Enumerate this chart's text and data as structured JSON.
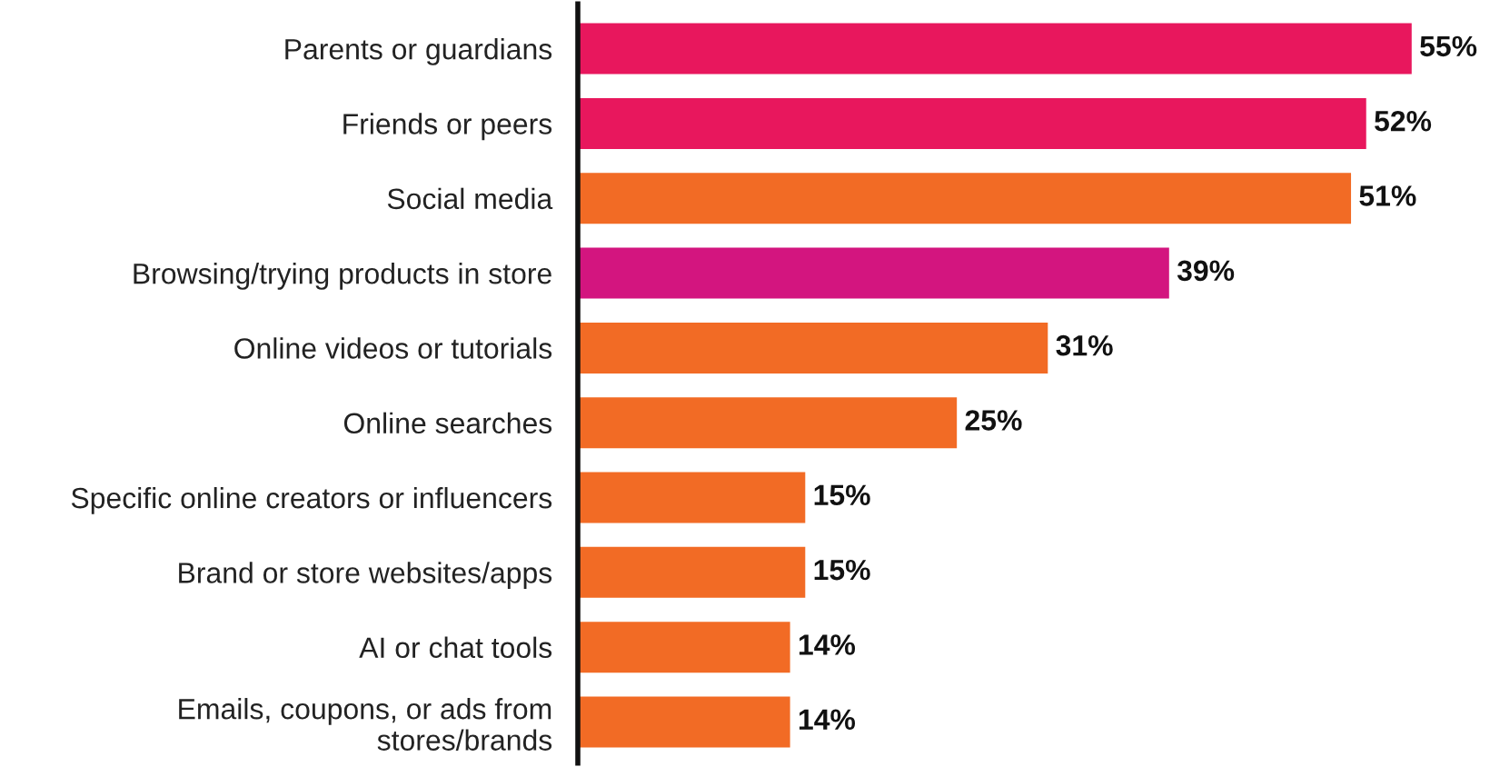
{
  "chart_data": {
    "type": "bar",
    "orientation": "horizontal",
    "categories": [
      "Parents or guardians",
      "Friends or peers",
      "Social media",
      "Browsing/trying products in store",
      "Online videos or tutorials",
      "Online searches",
      "Specific online creators or influencers",
      "Brand or store websites/apps",
      "AI or chat tools",
      "Emails, coupons, or ads from\nstores/brands"
    ],
    "values": [
      55,
      52,
      51,
      39,
      31,
      25,
      15,
      15,
      14,
      14
    ],
    "colors": [
      "#e8175d",
      "#e8175d",
      "#f26b25",
      "#d3157f",
      "#f26b25",
      "#f26b25",
      "#f26b25",
      "#f26b25",
      "#f26b25",
      "#f26b25"
    ],
    "value_labels": [
      "55%",
      "52%",
      "51%",
      "39%",
      "31%",
      "25%",
      "15%",
      "15%",
      "14%",
      "14%"
    ],
    "grid": false,
    "legend": false
  }
}
